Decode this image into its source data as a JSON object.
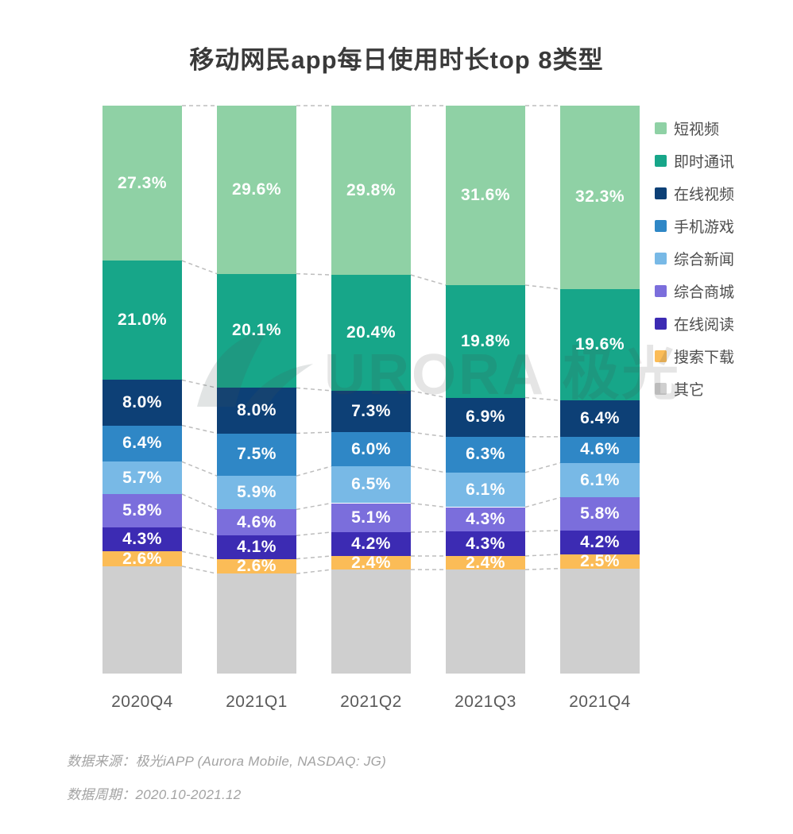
{
  "title": "移动网民app每日使用时长top 8类型",
  "watermark": {
    "logo": "aurora-logo",
    "text": "URORA 极光"
  },
  "footer": {
    "source": "数据来源：极光iAPP (Aurora Mobile, NASDAQ: JG)",
    "period": "数据周期：2020.10-2021.12"
  },
  "chart_data": {
    "type": "bar",
    "stacked": true,
    "unit": "%",
    "title": "移动网民app每日使用时长top 8类型",
    "categories": [
      "2020Q4",
      "2021Q1",
      "2021Q2",
      "2021Q3",
      "2021Q4"
    ],
    "series": [
      {
        "name": "短视频",
        "color": "#8FD1A5",
        "show_label": true,
        "values": [
          27.3,
          29.6,
          29.8,
          31.6,
          32.3
        ]
      },
      {
        "name": "即时通讯",
        "color": "#17A689",
        "show_label": true,
        "values": [
          21.0,
          20.1,
          20.4,
          19.8,
          19.6
        ]
      },
      {
        "name": "在线视频",
        "color": "#0D4076",
        "show_label": true,
        "values": [
          8.0,
          8.0,
          7.3,
          6.9,
          6.4
        ]
      },
      {
        "name": "手机游戏",
        "color": "#2F87C6",
        "show_label": true,
        "values": [
          6.4,
          7.5,
          6.0,
          6.3,
          4.6
        ]
      },
      {
        "name": "综合新闻",
        "color": "#78B9E6",
        "show_label": true,
        "values": [
          5.7,
          5.9,
          6.5,
          6.1,
          6.1
        ]
      },
      {
        "name": "综合商城",
        "color": "#7B6EDC",
        "show_label": true,
        "values": [
          5.8,
          4.6,
          5.1,
          4.3,
          5.8
        ]
      },
      {
        "name": "在线阅读",
        "color": "#3C2BB3",
        "show_label": true,
        "values": [
          4.3,
          4.1,
          4.2,
          4.3,
          4.2
        ]
      },
      {
        "name": "搜索下载",
        "color": "#FBBC57",
        "show_label": true,
        "values": [
          2.6,
          2.6,
          2.4,
          2.4,
          2.5
        ]
      },
      {
        "name": "其它",
        "color": "#CFCFCF",
        "show_label": false,
        "values": [
          18.9,
          17.6,
          18.3,
          18.3,
          18.5
        ]
      }
    ],
    "ylim": [
      0,
      100
    ],
    "legend_position": "right",
    "grid": false,
    "connector_lines": "dashed gray lines join segment boundaries between adjacent bars"
  }
}
